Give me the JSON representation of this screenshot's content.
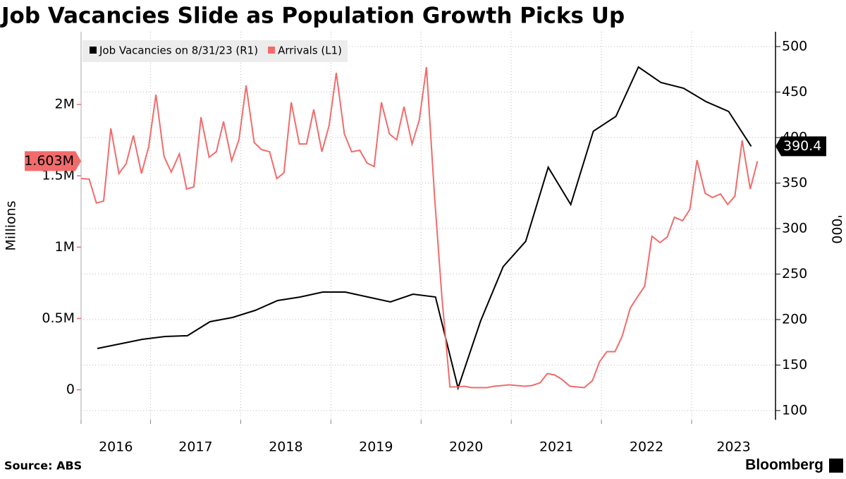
{
  "chart_data": {
    "type": "line",
    "title": "Job Vacancies Slide as Population Growth Picks Up",
    "source": "Source: ABS",
    "brand": "Bloomberg",
    "ylabel": "Millions",
    "y2label": "'000",
    "xlim": [
      2016.23,
      2023.93
    ],
    "xticks": [
      {
        "value": 2016,
        "label": "2016"
      },
      {
        "value": 2017,
        "label": "2017"
      },
      {
        "value": 2018,
        "label": "2018"
      },
      {
        "value": 2019,
        "label": "2019"
      },
      {
        "value": 2020,
        "label": "2020"
      },
      {
        "value": 2021,
        "label": "2021"
      },
      {
        "value": 2022,
        "label": "2022"
      },
      {
        "value": 2023,
        "label": "2023"
      }
    ],
    "ylim": [
      -0.21,
      2.51
    ],
    "yticks": [
      0,
      {
        "value": 0.5,
        "label": "0.5M"
      },
      {
        "value": 1,
        "label": "1M"
      },
      {
        "value": 1.5,
        "label": "1.5M"
      },
      {
        "value": 2,
        "label": "2M"
      }
    ],
    "y2lim": [
      89.9,
      516.3
    ],
    "y2ticks": [
      100,
      150,
      200,
      250,
      300,
      350,
      400,
      450,
      500
    ],
    "grid": true,
    "legend": "top-left",
    "series": [
      {
        "name": "Job Vacancies on 8/31/23 (R1)",
        "color": "#000000",
        "axis": "y2",
        "x": [
          2016.41,
          2016.91,
          2017.16,
          2017.41,
          2017.66,
          2017.91,
          2018.16,
          2018.41,
          2018.66,
          2018.91,
          2019.16,
          2019.41,
          2019.66,
          2019.91,
          2020.16,
          2020.41,
          2020.66,
          2020.91,
          2021.16,
          2021.41,
          2021.66,
          2021.91,
          2022.16,
          2022.41,
          2022.66,
          2022.91,
          2023.16,
          2023.41,
          2023.66
        ],
        "values": [
          168.2,
          178.3,
          181.4,
          182.2,
          197.7,
          202.3,
          210.1,
          220.9,
          224.8,
          230.2,
          230.2,
          224.8,
          219.4,
          227.9,
          224.8,
          124.8,
          198.4,
          258.1,
          286.0,
          367.4,
          326.4,
          407.0,
          423.3,
          477.5,
          460.5,
          454.3,
          439.5,
          428.7,
          390.4
        ]
      },
      {
        "name": "Arrivals (L1)",
        "color": "#f26b6b",
        "x": [
          2016.23,
          2016.32,
          2016.4,
          2016.48,
          2016.56,
          2016.65,
          2016.73,
          2016.81,
          2016.9,
          2016.98,
          2017.06,
          2017.15,
          2017.23,
          2017.32,
          2017.4,
          2017.48,
          2017.56,
          2017.65,
          2017.73,
          2017.81,
          2017.9,
          2017.98,
          2018.06,
          2018.15,
          2018.23,
          2018.32,
          2018.4,
          2018.48,
          2018.56,
          2018.65,
          2018.73,
          2018.81,
          2018.9,
          2018.98,
          2019.06,
          2019.15,
          2019.23,
          2019.32,
          2019.4,
          2019.48,
          2019.56,
          2019.65,
          2019.73,
          2019.81,
          2019.9,
          2019.98,
          2020.06,
          2020.15,
          2020.23,
          2020.32,
          2020.4,
          2020.48,
          2020.56,
          2020.65,
          2020.73,
          2020.81,
          2020.9,
          2020.98,
          2021.06,
          2021.15,
          2021.23,
          2021.32,
          2021.4,
          2021.48,
          2021.56,
          2021.65,
          2021.73,
          2021.81,
          2021.9,
          2021.98,
          2022.06,
          2022.15,
          2022.23,
          2022.32,
          2022.4,
          2022.48,
          2022.56,
          2022.65,
          2022.73,
          2022.81,
          2022.9,
          2022.98,
          2023.06,
          2023.15,
          2023.23,
          2023.32,
          2023.4,
          2023.48,
          2023.56,
          2023.65,
          2023.73
        ],
        "values": [
          1.481,
          1.477,
          1.309,
          1.323,
          1.832,
          1.516,
          1.585,
          1.783,
          1.516,
          1.704,
          2.069,
          1.635,
          1.526,
          1.654,
          1.407,
          1.422,
          1.911,
          1.63,
          1.669,
          1.881,
          1.605,
          1.753,
          2.133,
          1.733,
          1.684,
          1.669,
          1.481,
          1.521,
          2.015,
          1.723,
          1.723,
          1.965,
          1.669,
          1.852,
          2.222,
          1.793,
          1.669,
          1.679,
          1.59,
          1.565,
          2.015,
          1.793,
          1.753,
          1.985,
          1.723,
          1.891,
          2.262,
          1.348,
          0.657,
          0.02,
          0.02,
          0.025,
          0.015,
          0.015,
          0.015,
          0.025,
          0.03,
          0.035,
          0.03,
          0.025,
          0.03,
          0.049,
          0.114,
          0.104,
          0.074,
          0.025,
          0.02,
          0.015,
          0.064,
          0.198,
          0.267,
          0.267,
          0.375,
          0.573,
          0.652,
          0.726,
          1.077,
          1.032,
          1.072,
          1.21,
          1.185,
          1.264,
          1.61,
          1.378,
          1.348,
          1.373,
          1.299,
          1.358,
          1.748,
          1.407,
          1.603
        ],
        "value_labels": [
          null,
          null,
          null,
          null,
          null,
          null,
          null,
          null,
          null,
          null,
          null,
          null,
          null,
          null,
          null,
          null,
          null,
          null,
          null,
          null,
          null,
          null,
          null,
          null,
          null,
          null,
          null,
          null,
          null,
          null,
          null,
          null,
          null,
          null,
          null,
          null,
          null,
          null,
          null,
          null,
          null,
          null,
          null,
          null,
          null,
          null,
          null,
          null,
          null,
          null,
          null,
          null,
          null,
          null,
          null,
          null,
          null,
          null,
          null,
          null,
          null,
          null,
          null,
          null,
          null,
          null,
          null,
          null,
          null,
          null,
          null,
          null,
          null,
          null,
          null,
          null,
          null,
          null,
          null,
          null,
          null,
          null,
          null,
          null,
          null,
          null,
          null,
          null,
          null,
          null,
          "1.603M"
        ]
      }
    ]
  }
}
